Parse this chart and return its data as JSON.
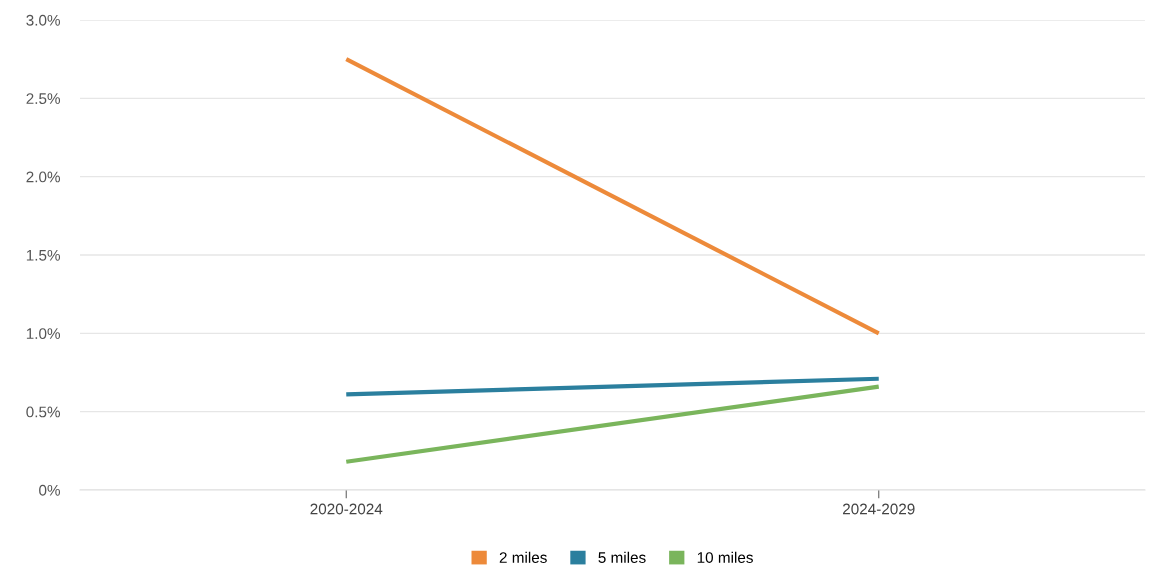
{
  "chart_data": {
    "type": "line",
    "categories": [
      "2020-2024",
      "2024-2029"
    ],
    "series": [
      {
        "name": "2 miles",
        "color": "#ed8a3a",
        "values": [
          2.75,
          1.0
        ]
      },
      {
        "name": "5 miles",
        "color": "#2b7f9e",
        "values": [
          0.61,
          0.71
        ]
      },
      {
        "name": "10 miles",
        "color": "#7ab55c",
        "values": [
          0.18,
          0.66
        ]
      }
    ],
    "ylim": [
      0,
      3.0
    ],
    "yticks": [
      {
        "value": 0,
        "label": "0%"
      },
      {
        "value": 0.5,
        "label": "0.5%"
      },
      {
        "value": 1.0,
        "label": "1.0%"
      },
      {
        "value": 1.5,
        "label": "1.5%"
      },
      {
        "value": 2.0,
        "label": "2.0%"
      },
      {
        "value": 2.5,
        "label": "2.5%"
      },
      {
        "value": 3.0,
        "label": "3.0%"
      }
    ],
    "grid": "y",
    "legend": "bottom",
    "marker": "none",
    "line_style": "solid"
  }
}
